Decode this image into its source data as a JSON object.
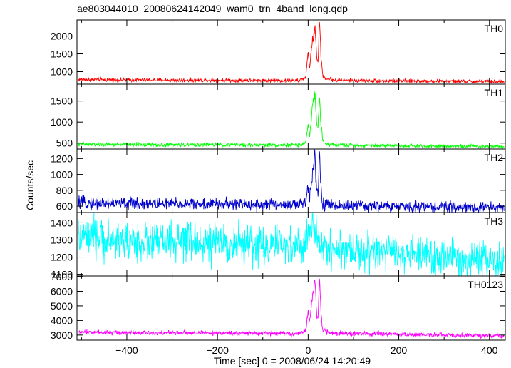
{
  "title": "ae803044010_20080624142049_wam0_trn_4band_long.qdp",
  "ylabel": "Counts/sec",
  "xlabel": "Time [sec] 0 = 2008/06/24 14:20:49",
  "chart_data": {
    "type": "line",
    "title": "ae803044010_20080624142049_wam0_trn_4band_long.qdp",
    "xlabel": "Time [sec] 0 = 2008/06/24 14:20:49",
    "ylabel": "Counts/sec",
    "xlim": [
      -510,
      435
    ],
    "x_ticks": [
      -400,
      -200,
      0,
      200,
      400
    ],
    "x_tick_labels": [
      "−400",
      "−200",
      "0",
      "200",
      "400"
    ],
    "legend": "none",
    "grid": false,
    "panels": [
      {
        "name": "TH0",
        "color": "#ff0000",
        "ylim": [
          650,
          2450
        ],
        "y_ticks": [
          1000,
          1500,
          2000
        ],
        "y_tick_labels": [
          "1000",
          "1500",
          "2000"
        ],
        "data": {
          "x": [
            -505,
            -400,
            -300,
            -200,
            -100,
            -20,
            -5,
            0,
            3,
            8,
            12,
            15,
            17,
            19,
            22,
            25,
            28,
            32,
            40,
            60,
            100,
            200,
            300,
            400,
            430
          ],
          "y": [
            780,
            770,
            760,
            760,
            755,
            750,
            850,
            1550,
            1100,
            1700,
            2050,
            2250,
            1900,
            1400,
            1300,
            2450,
            1500,
            900,
            800,
            760,
            750,
            740,
            730,
            720,
            720
          ]
        }
      },
      {
        "name": "TH1",
        "color": "#00ff00",
        "ylim": [
          360,
          1900
        ],
        "y_ticks": [
          500,
          1000,
          1500
        ],
        "y_tick_labels": [
          "500",
          "1000",
          "1500"
        ],
        "data": {
          "x": [
            -505,
            -400,
            -300,
            -200,
            -100,
            -20,
            -5,
            0,
            3,
            8,
            12,
            15,
            17,
            19,
            22,
            25,
            28,
            32,
            40,
            60,
            100,
            200,
            300,
            400,
            430
          ],
          "y": [
            470,
            465,
            460,
            460,
            455,
            450,
            520,
            1000,
            700,
            1150,
            1500,
            1700,
            1350,
            950,
            900,
            1600,
            1000,
            550,
            480,
            460,
            450,
            440,
            430,
            425,
            425
          ]
        }
      },
      {
        "name": "TH2",
        "color": "#0000cc",
        "ylim": [
          520,
          1320
        ],
        "y_ticks": [
          600,
          800,
          1000,
          1200
        ],
        "y_tick_labels": [
          "600",
          "800",
          "1000",
          "1200"
        ],
        "data": {
          "x": [
            -505,
            -400,
            -300,
            -200,
            -100,
            -20,
            -5,
            0,
            3,
            8,
            12,
            15,
            17,
            19,
            22,
            25,
            28,
            32,
            40,
            60,
            100,
            200,
            300,
            400,
            430
          ],
          "y": [
            640,
            635,
            630,
            625,
            620,
            615,
            650,
            870,
            720,
            950,
            1150,
            1300,
            1000,
            800,
            780,
            1270,
            850,
            640,
            620,
            610,
            605,
            595,
            590,
            585,
            585
          ]
        }
      },
      {
        "name": "TH3",
        "color": "#00ffff",
        "ylim": [
          1090,
          1460
        ],
        "y_ticks": [
          1100,
          1200,
          1300,
          1400
        ],
        "y_tick_labels": [
          "1100",
          "1200",
          "1300",
          "1400"
        ],
        "data": {
          "x": [
            -505,
            -450,
            -400,
            -300,
            -200,
            -100,
            -50,
            -10,
            0,
            10,
            15,
            20,
            40,
            100,
            200,
            300,
            400,
            430
          ],
          "y": [
            1310,
            1300,
            1290,
            1285,
            1280,
            1270,
            1265,
            1260,
            1330,
            1400,
            1320,
            1290,
            1250,
            1240,
            1220,
            1200,
            1170,
            1165
          ]
        }
      },
      {
        "name": "TH0123",
        "color": "#ff00ff",
        "ylim": [
          2650,
          7050
        ],
        "y_ticks": [
          3000,
          4000,
          5000,
          6000,
          7000
        ],
        "y_tick_labels": [
          "3000",
          "4000",
          "5000",
          "6000",
          "7000"
        ],
        "data": {
          "x": [
            -505,
            -400,
            -300,
            -200,
            -100,
            -20,
            -5,
            0,
            3,
            8,
            12,
            15,
            17,
            19,
            22,
            25,
            28,
            32,
            40,
            60,
            100,
            200,
            300,
            400,
            430
          ],
          "y": [
            3200,
            3180,
            3150,
            3140,
            3120,
            3100,
            3300,
            4800,
            3900,
            5300,
            6100,
            6700,
            5600,
            4300,
            4100,
            7000,
            4600,
            3400,
            3200,
            3120,
            3100,
            3050,
            3000,
            2950,
            2950
          ]
        }
      }
    ]
  }
}
